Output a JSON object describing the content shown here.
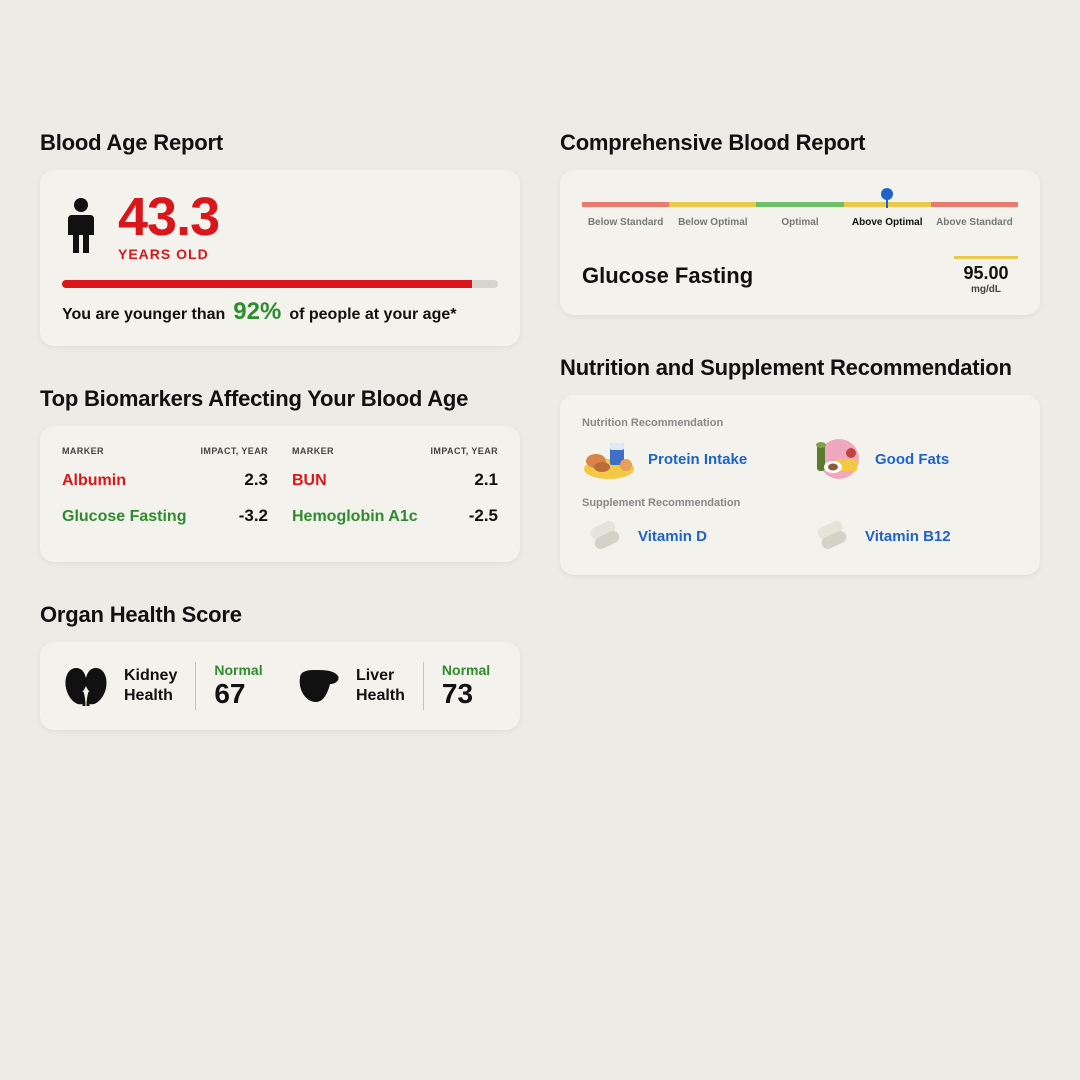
{
  "colors": {
    "bg": "#edebe5",
    "card_bg": "#f4f2ec",
    "red": "#d8161b",
    "green": "#2e8b2e",
    "link_blue": "#1e63c8",
    "muted": "#888888",
    "bar_track": "#d7d4cc"
  },
  "blood_age": {
    "title": "Blood Age Report",
    "age_value": "43.3",
    "age_unit": "YEARS OLD",
    "bar_fill_pct": 94,
    "younger_prefix": "You are younger than",
    "younger_pct": "92%",
    "younger_suffix": "of people at your age*"
  },
  "comprehensive": {
    "title": "Comprehensive Blood Report",
    "scale": {
      "segments": [
        {
          "label": "Below Standard",
          "color": "#e77b6f"
        },
        {
          "label": "Below Optimal",
          "color": "#e8c94b"
        },
        {
          "label": "Optimal",
          "color": "#6fbf6a"
        },
        {
          "label": "Above Optimal",
          "color": "#e8c94b"
        },
        {
          "label": "Above Standard",
          "color": "#e77b6f"
        }
      ],
      "marker_segment_index": 3,
      "marker_pct_within_segment": 50,
      "active_label_index": 3
    },
    "metric_name": "Glucose Fasting",
    "metric_value": "95.00",
    "metric_unit": "mg/dL",
    "value_bar_color": "#e8c94b"
  },
  "biomarkers": {
    "title": "Top Biomarkers Affecting Your Blood Age",
    "head_marker": "MARKER",
    "head_impact": "IMPACT, YEAR",
    "cols": [
      [
        {
          "name": "Albumin",
          "cls": "red",
          "impact": "2.3"
        },
        {
          "name": "Glucose Fasting",
          "cls": "green",
          "impact": "-3.2"
        }
      ],
      [
        {
          "name": "BUN",
          "cls": "red",
          "impact": "2.1"
        },
        {
          "name": "Hemoglobin A1c",
          "cls": "green",
          "impact": "-2.5"
        }
      ]
    ]
  },
  "nutrition": {
    "title": "Nutrition and Supplement Recommendation",
    "nutri_head": "Nutrition Recommendation",
    "nutri_items": [
      "Protein Intake",
      "Good Fats"
    ],
    "supp_head": "Supplement Recommendation",
    "supp_items": [
      "Vitamin D",
      "Vitamin B12"
    ]
  },
  "organ": {
    "title": "Organ Health Score",
    "items": [
      {
        "name_line1": "Kidney",
        "name_line2": "Health",
        "status": "Normal",
        "score": "67"
      },
      {
        "name_line1": "Liver",
        "name_line2": "Health",
        "status": "Normal",
        "score": "73"
      }
    ]
  }
}
